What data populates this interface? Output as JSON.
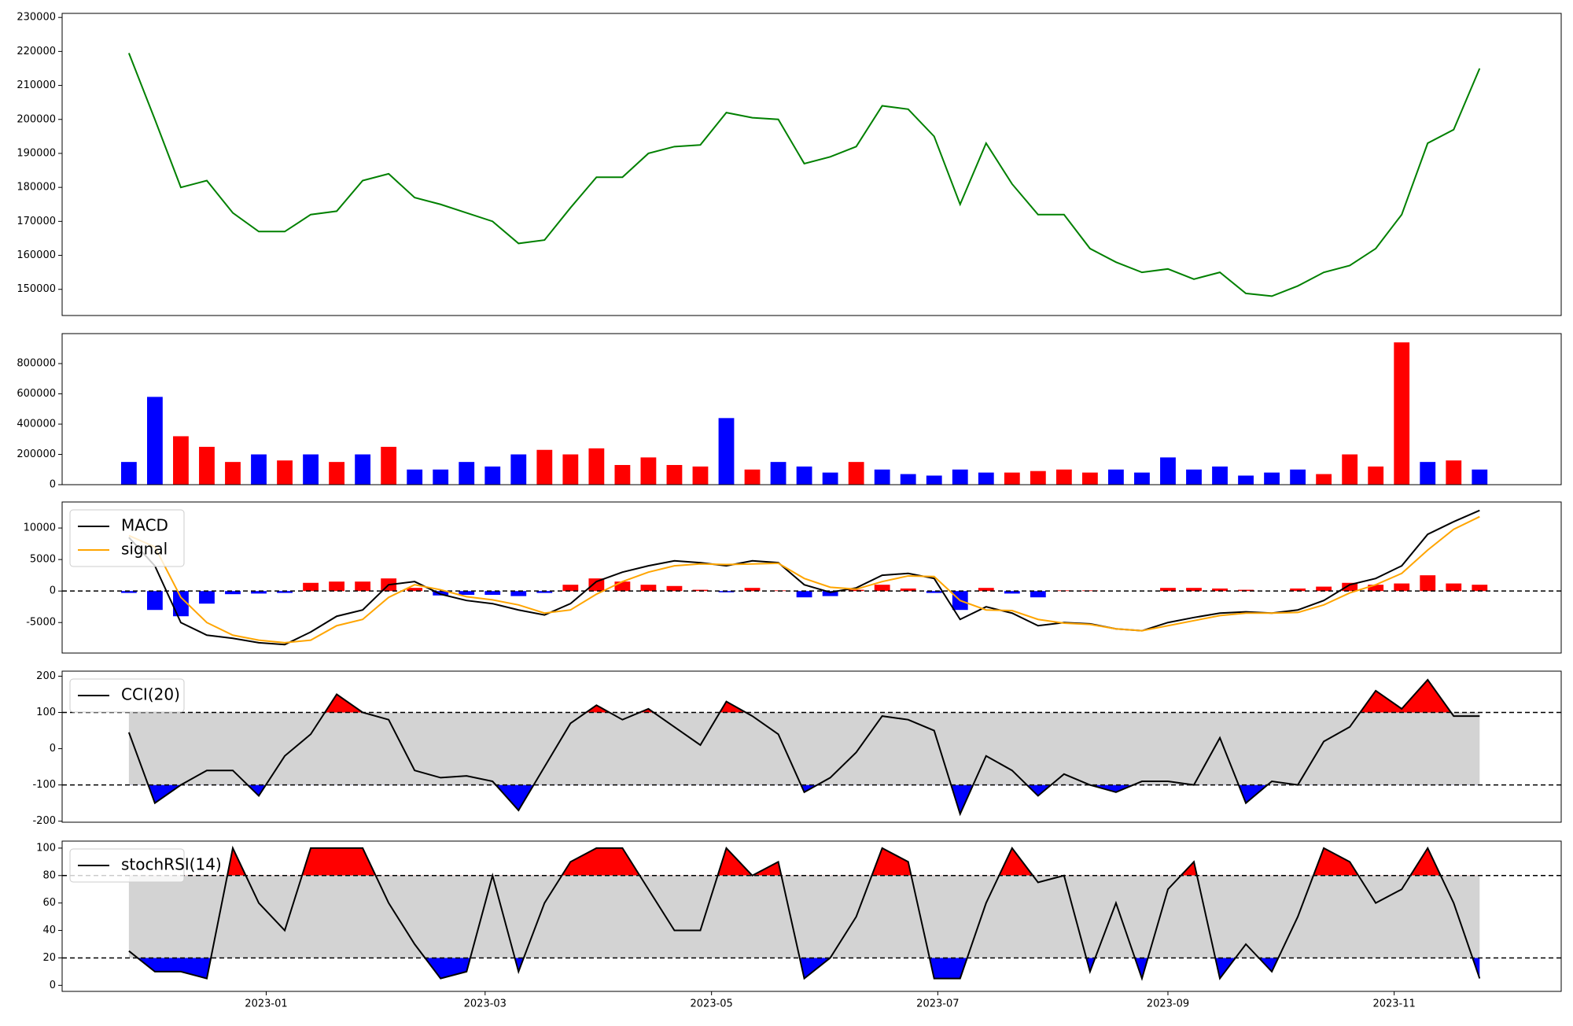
{
  "chart_data": [
    {
      "type": "line",
      "xlim": [
        -2.57,
        55.14
      ],
      "ylim": [
        142300,
        231200
      ],
      "yticks": [
        150000,
        160000,
        170000,
        180000,
        190000,
        200000,
        210000,
        220000,
        230000
      ],
      "series": [
        {
          "name": null,
          "color": "green",
          "values": [
            219500,
            200000,
            180000,
            182000,
            172500,
            167000,
            167000,
            172000,
            173000,
            182000,
            184000,
            177000,
            175000,
            172500,
            170000,
            163500,
            164500,
            174000,
            183000,
            183000,
            190000,
            192000,
            192500,
            202000,
            200500,
            200000,
            187000,
            189000,
            192000,
            204000,
            203000,
            195000,
            175000,
            193000,
            181000,
            172000,
            172000,
            162000,
            158000,
            155000,
            156000,
            153000,
            155000,
            148800,
            148000,
            151000,
            155000,
            157000,
            162000,
            172000,
            193000,
            197000,
            215000
          ]
        }
      ]
    },
    {
      "type": "bar",
      "xlim": [
        -2.57,
        55.14
      ],
      "ylim": [
        0,
        998000
      ],
      "yticks": [
        0,
        200000,
        400000,
        600000,
        800000
      ],
      "values": [
        150000,
        580000,
        320000,
        250000,
        150000,
        200000,
        160000,
        200000,
        150000,
        200000,
        250000,
        100000,
        100000,
        150000,
        120000,
        200000,
        230000,
        200000,
        240000,
        130000,
        180000,
        130000,
        120000,
        440000,
        100000,
        150000,
        120000,
        80000,
        150000,
        100000,
        70000,
        60000,
        100000,
        80000,
        80000,
        90000,
        100000,
        80000,
        100000,
        80000,
        180000,
        100000,
        120000,
        60000,
        80000,
        100000,
        70000,
        200000,
        120000,
        940000,
        150000,
        160000,
        100000
      ],
      "colors": [
        "blue",
        "blue",
        "red",
        "red",
        "red",
        "blue",
        "red",
        "blue",
        "red",
        "blue",
        "red",
        "blue",
        "blue",
        "blue",
        "blue",
        "blue",
        "red",
        "red",
        "red",
        "red",
        "red",
        "red",
        "red",
        "blue",
        "red",
        "blue",
        "blue",
        "blue",
        "red",
        "blue",
        "blue",
        "blue",
        "blue",
        "blue",
        "red",
        "red",
        "red",
        "red",
        "blue",
        "blue",
        "blue",
        "blue",
        "blue",
        "blue",
        "blue",
        "blue",
        "red",
        "red",
        "red",
        "red",
        "blue",
        "red",
        "blue"
      ]
    },
    {
      "type": "line",
      "xlim": [
        -2.57,
        55.14
      ],
      "ylim": [
        -9840,
        14130
      ],
      "yticks": [
        -5000,
        0,
        5000,
        10000
      ],
      "zero_line": 0,
      "legend": "upper left",
      "series": [
        {
          "name": "MACD",
          "color": "black",
          "values": [
            8500,
            4000,
            -5000,
            -7000,
            -7500,
            -8200,
            -8500,
            -6500,
            -4000,
            -3000,
            1000,
            1500,
            -500,
            -1500,
            -2000,
            -3000,
            -3800,
            -2000,
            1500,
            3000,
            4000,
            4800,
            4500,
            4000,
            4800,
            4500,
            1000,
            -200,
            500,
            2500,
            2800,
            2000,
            -4500,
            -2500,
            -3500,
            -5500,
            -5000,
            -5200,
            -6000,
            -6300,
            -5000,
            -4200,
            -3500,
            -3300,
            -3500,
            -3000,
            -1500,
            1000,
            2000,
            4000,
            9000,
            11000,
            12800
          ]
        },
        {
          "name": "signal",
          "color": "orange",
          "values": [
            8800,
            7000,
            -1000,
            -5000,
            -7000,
            -7800,
            -8200,
            -7800,
            -5500,
            -4500,
            -1000,
            1000,
            200,
            -900,
            -1400,
            -2200,
            -3500,
            -3000,
            -500,
            1500,
            3000,
            4000,
            4300,
            4200,
            4300,
            4400,
            2000,
            600,
            300,
            1500,
            2400,
            2300,
            -1500,
            -3000,
            -3100,
            -4500,
            -5100,
            -5300,
            -6000,
            -6300,
            -5500,
            -4700,
            -3900,
            -3500,
            -3500,
            -3400,
            -2200,
            -300,
            1000,
            2800,
            6500,
            9800,
            11800
          ]
        }
      ],
      "histogram": [
        -300,
        -3000,
        -4000,
        -2000,
        -500,
        -400,
        -300,
        1300,
        1500,
        1500,
        2000,
        500,
        -700,
        -600,
        -600,
        -800,
        -300,
        1000,
        2000,
        1500,
        1000,
        800,
        200,
        -200,
        500,
        100,
        -1000,
        -800,
        200,
        1000,
        400,
        -300,
        -3000,
        500,
        -400,
        -1000,
        100,
        100,
        0,
        0,
        500,
        500,
        400,
        200,
        0,
        400,
        700,
        1300,
        1000,
        1200,
        2500,
        1200,
        1000
      ],
      "up_color": "red",
      "down_color": "blue"
    },
    {
      "type": "line",
      "xlim": [
        -2.57,
        55.14
      ],
      "ylim": [
        -202.8,
        213.9
      ],
      "yticks": [
        -200,
        -100,
        0,
        100,
        200
      ],
      "levels": [
        -100,
        100
      ],
      "legend": "upper left",
      "band_color": "lightgray",
      "upper_fill": "red",
      "lower_fill": "blue",
      "series": [
        {
          "name": "CCI(20)",
          "color": "black",
          "values": [
            45,
            -150,
            -100,
            -60,
            -60,
            -130,
            -20,
            40,
            150,
            100,
            80,
            -60,
            -80,
            -75,
            -90,
            -170,
            -50,
            70,
            120,
            80,
            110,
            60,
            10,
            130,
            90,
            40,
            -120,
            -80,
            -10,
            90,
            80,
            50,
            -180,
            -20,
            -60,
            -130,
            -70,
            -100,
            -120,
            -90,
            -90,
            -100,
            30,
            -150,
            -90,
            -100,
            20,
            60,
            160,
            110,
            190,
            90,
            90
          ]
        }
      ]
    },
    {
      "type": "line",
      "xlim": [
        -2.57,
        55.14
      ],
      "ylim": [
        -4.4,
        105.1
      ],
      "yticks": [
        0,
        20,
        40,
        60,
        80,
        100
      ],
      "levels": [
        20,
        80
      ],
      "legend": "upper left",
      "band_color": "lightgray",
      "upper_fill": "red",
      "lower_fill": "blue",
      "xticks": [
        {
          "value": 5.286,
          "label": "2023-01"
        },
        {
          "value": 13.714,
          "label": "2023-03"
        },
        {
          "value": 22.43,
          "label": "2023-05"
        },
        {
          "value": 31.14,
          "label": "2023-07"
        },
        {
          "value": 40,
          "label": "2023-09"
        },
        {
          "value": 48.71,
          "label": "2023-11"
        }
      ],
      "series": [
        {
          "name": "stochRSI(14)",
          "color": "black",
          "values": [
            25,
            10,
            10,
            5,
            100,
            60,
            40,
            100,
            100,
            100,
            60,
            30,
            5,
            10,
            80,
            10,
            60,
            90,
            100,
            100,
            70,
            40,
            40,
            100,
            80,
            90,
            5,
            20,
            50,
            100,
            90,
            5,
            5,
            60,
            100,
            75,
            80,
            10,
            60,
            5,
            70,
            90,
            5,
            30,
            10,
            50,
            100,
            90,
            60,
            70,
            100,
            60,
            5
          ]
        }
      ]
    }
  ]
}
